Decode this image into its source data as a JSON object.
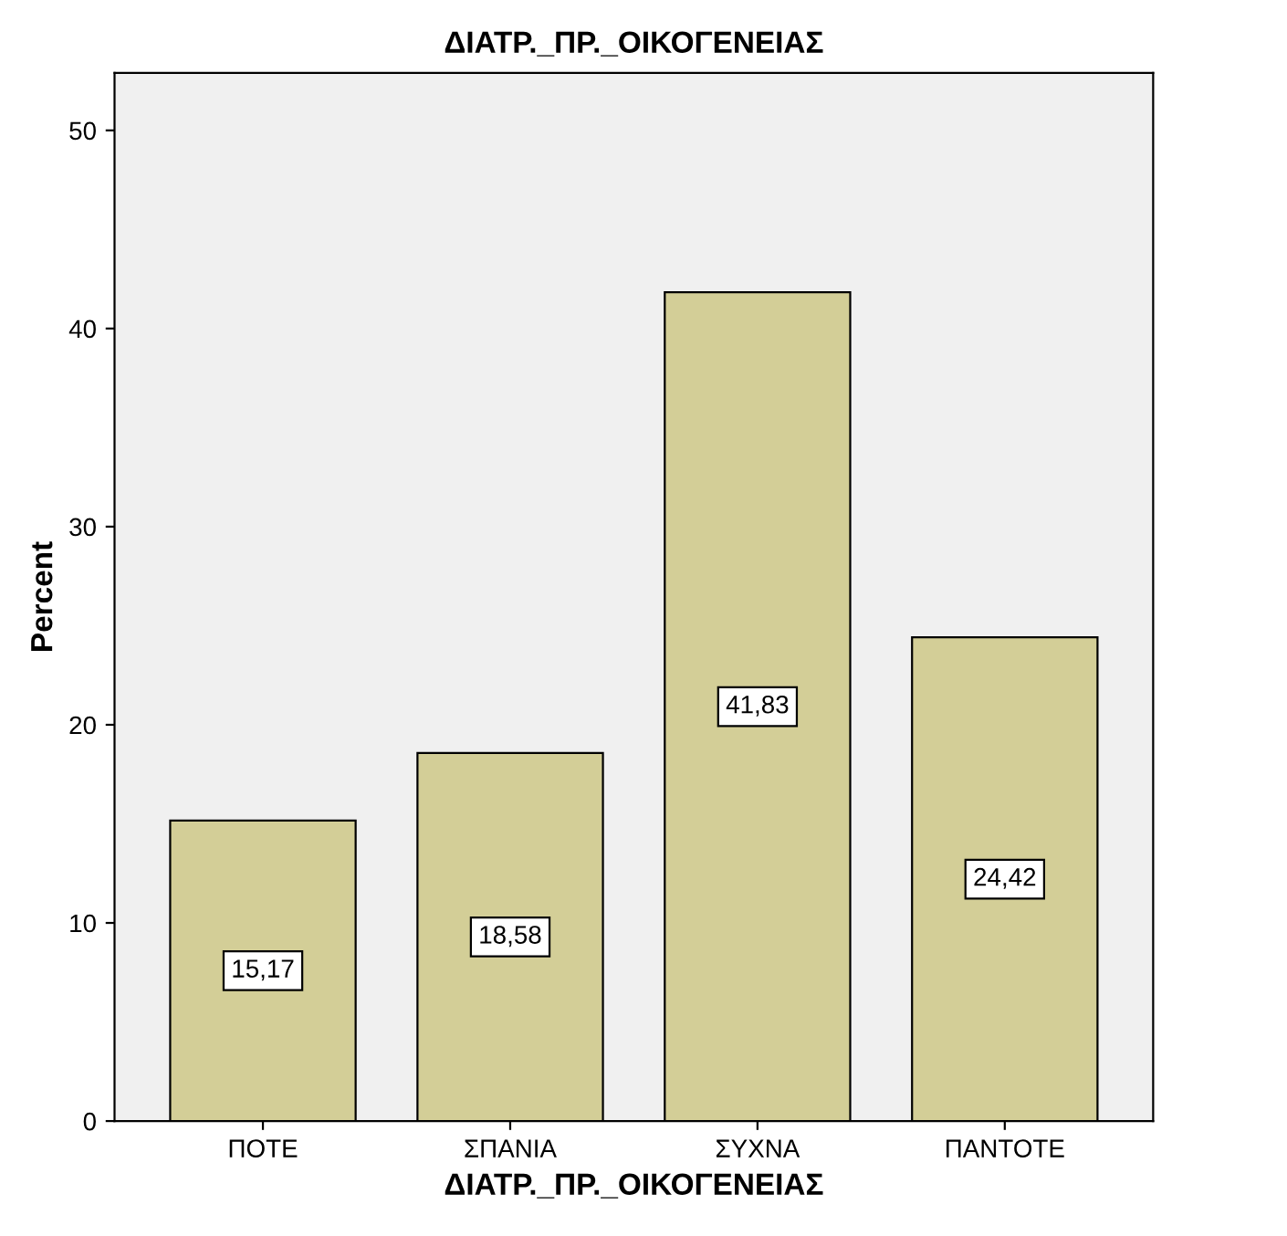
{
  "chart_data": {
    "type": "bar",
    "title": "ΔΙΑΤΡ._ΠΡ._ΟΙΚΟΓΕΝΕΙΑΣ",
    "xlabel": "ΔΙΑΤΡ._ΠΡ._ΟΙΚΟΓΕΝΕΙΑΣ",
    "ylabel": "Percent",
    "categories": [
      "ΠΟΤΕ",
      "ΣΠΑΝΙΑ",
      "ΣΥΧΝΑ",
      "ΠΑΝΤΟΤΕ"
    ],
    "values": [
      15.17,
      18.58,
      41.83,
      24.42
    ],
    "value_labels": [
      "15,17",
      "18,58",
      "41,83",
      "24,42"
    ],
    "color": "#d3ce97",
    "ylim": [
      0,
      52.9
    ],
    "yticks": [
      0,
      10,
      20,
      30,
      40,
      50
    ],
    "grid": false
  }
}
